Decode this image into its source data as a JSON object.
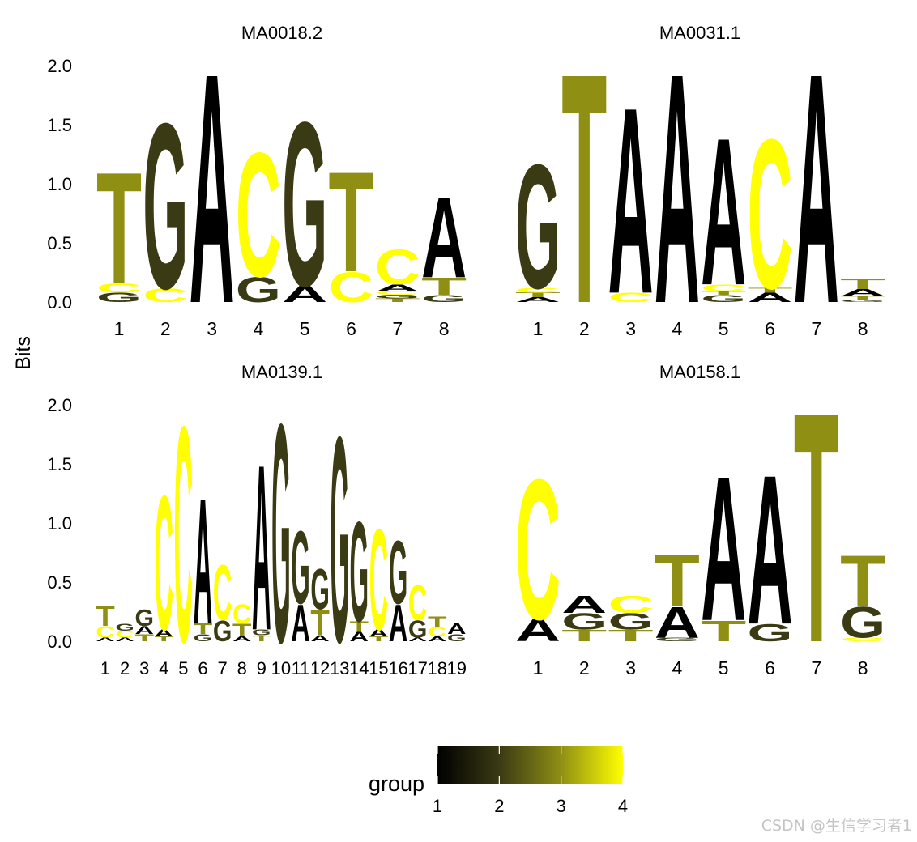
{
  "chart_data": {
    "type": "sequence-logo",
    "ylabel": "Bits",
    "ylim": [
      0,
      2
    ],
    "yticks": [
      "0.0",
      "0.5",
      "1.0",
      "1.5",
      "2.0"
    ],
    "legend": {
      "title": "group",
      "placement": "bottom",
      "ticks": [
        "1",
        "2",
        "3",
        "4"
      ],
      "colors": [
        "#000000",
        "#3a3a14",
        "#8f8f14",
        "#ffff00"
      ]
    },
    "letter_colors": {
      "A": "#000000",
      "G": "#3a3a14",
      "T": "#8f8f14",
      "C": "#ffff00"
    },
    "panels": [
      {
        "title": "MA0018.2",
        "positions": [
          "1",
          "2",
          "3",
          "4",
          "5",
          "6",
          "7",
          "8"
        ],
        "stacks": [
          [
            [
              "G",
              0.08
            ],
            [
              "C",
              0.08
            ],
            [
              "T",
              0.97
            ]
          ],
          [
            [
              "C",
              0.12
            ],
            [
              "G",
              1.44
            ]
          ],
          [
            [
              "A",
              2.0
            ]
          ],
          [
            [
              "G",
              0.22
            ],
            [
              "C",
              1.08
            ]
          ],
          [
            [
              "A",
              0.14
            ],
            [
              "G",
              1.43
            ]
          ],
          [
            [
              "C",
              0.26
            ],
            [
              "T",
              0.87
            ]
          ],
          [
            [
              "T",
              0.03
            ],
            [
              "G",
              0.03
            ],
            [
              "C",
              0.03
            ],
            [
              "A",
              0.06
            ],
            [
              "C",
              0.3
            ]
          ],
          [
            [
              "G",
              0.06
            ],
            [
              "T",
              0.15
            ],
            [
              "A",
              0.7
            ]
          ]
        ]
      },
      {
        "title": "MA0031.1",
        "positions": [
          "1",
          "2",
          "3",
          "4",
          "5",
          "6",
          "7",
          "8"
        ],
        "stacks": [
          [
            [
              "A",
              0.04
            ],
            [
              "T",
              0.04
            ],
            [
              "C",
              0.04
            ],
            [
              "G",
              1.08
            ]
          ],
          [
            [
              "T",
              2.0
            ]
          ],
          [
            [
              "C",
              0.08
            ],
            [
              "A",
              1.62
            ]
          ],
          [
            [
              "A",
              2.0
            ]
          ],
          [
            [
              "G",
              0.06
            ],
            [
              "T",
              0.03
            ],
            [
              "C",
              0.06
            ],
            [
              "A",
              1.28
            ]
          ],
          [
            [
              "A",
              0.08
            ],
            [
              "T",
              0.04
            ],
            [
              "C",
              1.3
            ]
          ],
          [
            [
              "A",
              2.0
            ]
          ],
          [
            [
              "G",
              0.02
            ],
            [
              "T",
              0.03
            ],
            [
              "A",
              0.06
            ],
            [
              "T",
              0.09
            ]
          ]
        ]
      },
      {
        "title": "MA0139.1",
        "positions": [
          "1",
          "2",
          "3",
          "4",
          "5",
          "6",
          "7",
          "8",
          "9",
          "10",
          "11",
          "12",
          "13",
          "14",
          "15",
          "16",
          "17",
          "18",
          "19"
        ],
        "stacks": [
          [
            [
              "A",
              0.03
            ],
            [
              "C",
              0.1
            ],
            [
              "T",
              0.18
            ]
          ],
          [
            [
              "A",
              0.03
            ],
            [
              "C",
              0.06
            ],
            [
              "G",
              0.06
            ]
          ],
          [
            [
              "T",
              0.06
            ],
            [
              "A",
              0.07
            ],
            [
              "G",
              0.14
            ]
          ],
          [
            [
              "T",
              0.04
            ],
            [
              "A",
              0.06
            ],
            [
              "C",
              1.17
            ]
          ],
          [
            [
              "C",
              1.88
            ]
          ],
          [
            [
              "G",
              0.06
            ],
            [
              "T",
              0.09
            ],
            [
              "A",
              1.09
            ]
          ],
          [
            [
              "G",
              0.18
            ],
            [
              "C",
              0.48
            ]
          ],
          [
            [
              "A",
              0.04
            ],
            [
              "T",
              0.11
            ],
            [
              "C",
              0.17
            ]
          ],
          [
            [
              "T",
              0.05
            ],
            [
              "G",
              0.05
            ],
            [
              "A",
              1.44
            ]
          ],
          [
            [
              "G",
              1.9
            ]
          ],
          [
            [
              "A",
              0.32
            ],
            [
              "G",
              0.63
            ]
          ],
          [
            [
              "A",
              0.05
            ],
            [
              "T",
              0.22
            ],
            [
              "G",
              0.35
            ]
          ],
          [
            [
              "G",
              1.79
            ]
          ],
          [
            [
              "A",
              0.08
            ],
            [
              "T",
              0.09
            ],
            [
              "G",
              0.87
            ]
          ],
          [
            [
              "T",
              0.04
            ],
            [
              "A",
              0.06
            ],
            [
              "C",
              0.88
            ]
          ],
          [
            [
              "A",
              0.32
            ],
            [
              "G",
              0.55
            ]
          ],
          [
            [
              "A",
              0.03
            ],
            [
              "G",
              0.15
            ],
            [
              "C",
              0.3
            ]
          ],
          [
            [
              "A",
              0.04
            ],
            [
              "C",
              0.08
            ],
            [
              "T",
              0.09
            ]
          ],
          [
            [
              "G",
              0.06
            ],
            [
              "A",
              0.09
            ]
          ]
        ]
      },
      {
        "title": "MA0158.1",
        "positions": [
          "1",
          "2",
          "3",
          "4",
          "5",
          "6",
          "7",
          "8"
        ],
        "stacks": [
          [
            [
              "A",
              0.19
            ],
            [
              "C",
              1.22
            ]
          ],
          [
            [
              "T",
              0.1
            ],
            [
              "G",
              0.14
            ],
            [
              "A",
              0.15
            ]
          ],
          [
            [
              "T",
              0.1
            ],
            [
              "G",
              0.14
            ],
            [
              "C",
              0.15
            ]
          ],
          [
            [
              "G",
              0.03
            ],
            [
              "A",
              0.27
            ],
            [
              "T",
              0.45
            ]
          ],
          [
            [
              "T",
              0.18
            ],
            [
              "A",
              1.26
            ]
          ],
          [
            [
              "G",
              0.15
            ],
            [
              "A",
              1.3
            ]
          ],
          [
            [
              "T",
              2.0
            ]
          ],
          [
            [
              "C",
              0.03
            ],
            [
              "G",
              0.27
            ],
            [
              "T",
              0.44
            ]
          ]
        ]
      }
    ]
  },
  "watermark": "CSDN @生信学习者1"
}
